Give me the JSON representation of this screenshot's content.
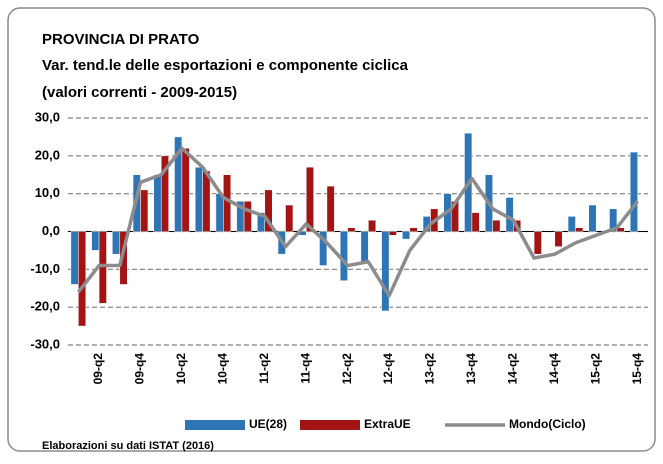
{
  "chart_data": {
    "type": "bar",
    "title": "PROVINCIA DI PRATO",
    "subtitle": "Var. tend.le delle esportazioni e componente ciclica",
    "subtitle2": "(valori correnti - 2009-2015)",
    "footer": "Elaborazioni su dati ISTAT (2016)",
    "categories": [
      null,
      "09-q2",
      null,
      "09-q4",
      null,
      "10-q2",
      null,
      "10-q4",
      null,
      "11-q2",
      null,
      "11-q4",
      null,
      "12-q2",
      null,
      "12-q4",
      null,
      "13-q2",
      null,
      "13-q4",
      null,
      "14-q2",
      null,
      "14-q4",
      null,
      "15-q2",
      null,
      "15-q4"
    ],
    "series": [
      {
        "name": "UE(28)",
        "color": "#2e75b6",
        "kind": "bar",
        "values": [
          -14,
          -5,
          -6,
          15,
          15,
          25,
          17,
          10,
          8,
          5,
          -6,
          -1,
          -9,
          -13,
          -8,
          -21,
          -2,
          4,
          10,
          26,
          15,
          9,
          0,
          0,
          4,
          7,
          6,
          21
        ]
      },
      {
        "name": "ExtraUE",
        "color": "#a31515",
        "kind": "bar",
        "values": [
          -25,
          -19,
          -14,
          11,
          20,
          22,
          16,
          15,
          8,
          11,
          7,
          17,
          12,
          1,
          3,
          -1,
          1,
          6,
          8,
          5,
          3,
          3,
          -6,
          -4,
          1,
          0,
          1,
          0
        ]
      },
      {
        "name": "Mondo(Ciclo)",
        "color": "#8c8c8c",
        "kind": "line",
        "values": [
          -16,
          -9,
          -9,
          13,
          15,
          22,
          17,
          9,
          6,
          4,
          -4,
          2,
          -3,
          -9,
          -8,
          -17,
          -5,
          2,
          6,
          14,
          6,
          3,
          -7,
          -6,
          -3,
          -1,
          1,
          8
        ]
      }
    ],
    "ylim": [
      -30,
      30
    ],
    "yticks": [
      {
        "value": -30,
        "label": "-30,0"
      },
      {
        "value": -20,
        "label": "-20,0"
      },
      {
        "value": -10,
        "label": "-10,0"
      },
      {
        "value": 0,
        "label": "0,0"
      },
      {
        "value": 10,
        "label": "10,0"
      },
      {
        "value": 20,
        "label": "20,0"
      },
      {
        "value": 30,
        "label": "30,0"
      }
    ],
    "grid": true,
    "legend": "bottom"
  }
}
